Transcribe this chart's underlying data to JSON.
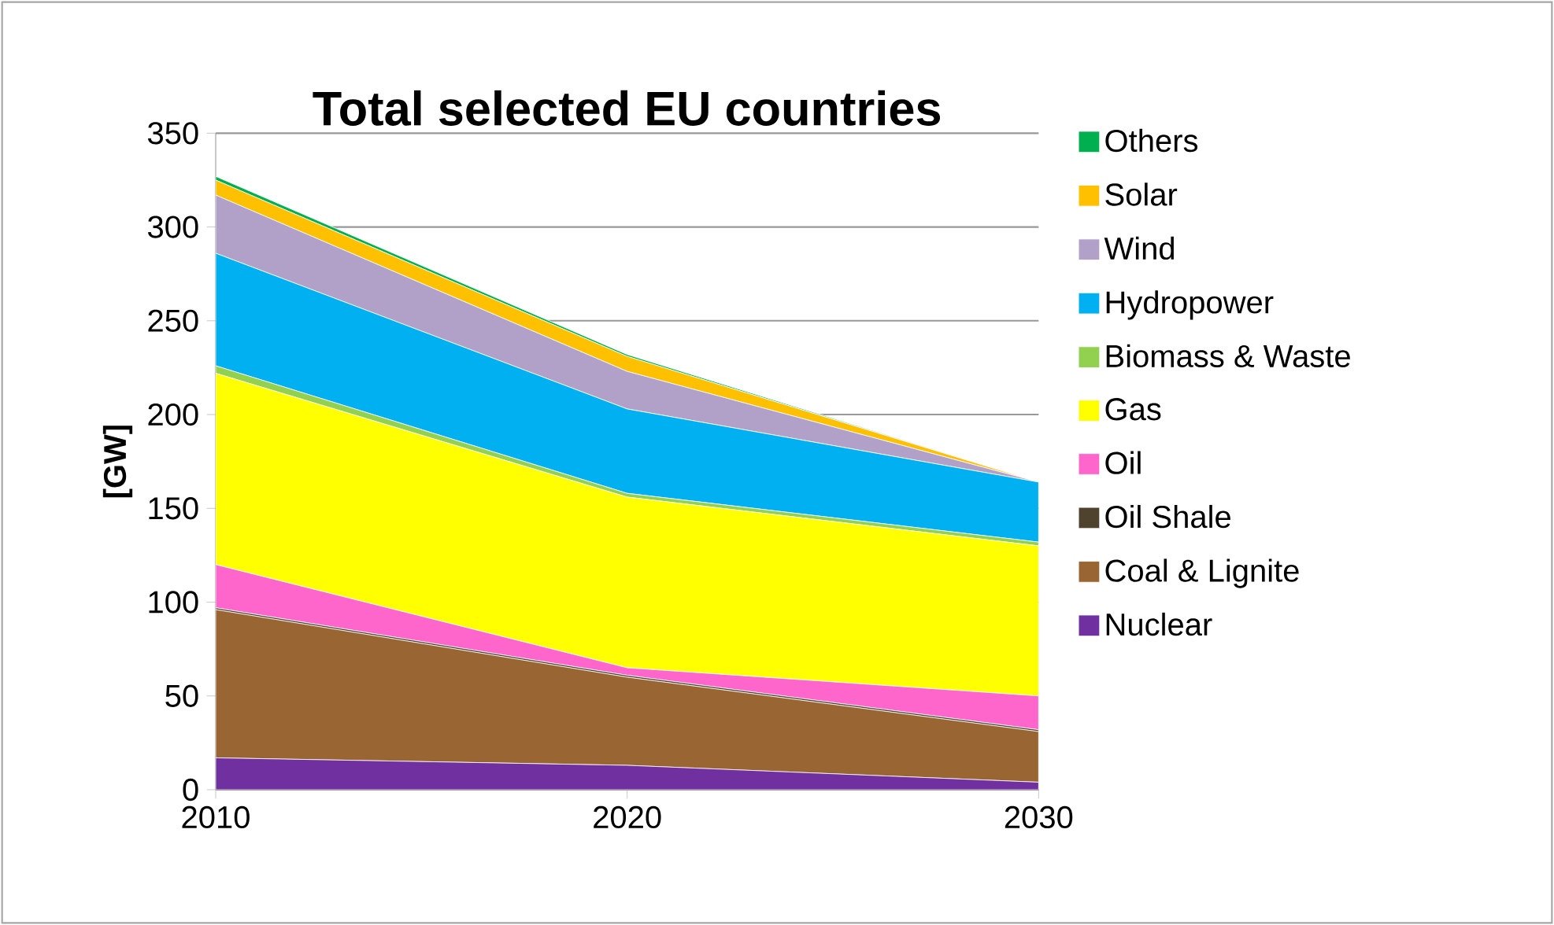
{
  "chart_data": {
    "type": "area",
    "title": "Total selected EU countries",
    "ylabel": "[GW]",
    "stacked": true,
    "x": [
      2010,
      2020,
      2030
    ],
    "xlim": [
      2010,
      2030
    ],
    "xticks": [
      2010,
      2020,
      2030
    ],
    "ylim": [
      0,
      350
    ],
    "yticks": [
      0,
      50,
      100,
      150,
      200,
      250,
      300,
      350
    ],
    "grid": "y",
    "legend": "right",
    "series": [
      {
        "name": "Nuclear",
        "color": "#7030a0",
        "values": [
          17,
          13,
          4
        ]
      },
      {
        "name": "Coal & Lignite",
        "color": "#996633",
        "values": [
          79,
          47,
          27
        ]
      },
      {
        "name": "Oil Shale",
        "color": "#4f4330",
        "values": [
          1,
          1,
          1
        ]
      },
      {
        "name": "Oil",
        "color": "#ff66cc",
        "values": [
          23,
          4,
          18
        ]
      },
      {
        "name": "Gas",
        "color": "#ffff00",
        "values": [
          102,
          91,
          80
        ]
      },
      {
        "name": "Biomass & Waste",
        "color": "#92d050",
        "values": [
          4,
          2,
          2
        ]
      },
      {
        "name": "Hydropower",
        "color": "#00b0f0",
        "values": [
          60,
          45,
          32
        ]
      },
      {
        "name": "Wind",
        "color": "#b1a0c7",
        "values": [
          31,
          20,
          0
        ]
      },
      {
        "name": "Solar",
        "color": "#ffc000",
        "values": [
          8,
          8,
          0
        ]
      },
      {
        "name": "Others",
        "color": "#00b050",
        "values": [
          2,
          1,
          0
        ]
      }
    ]
  }
}
